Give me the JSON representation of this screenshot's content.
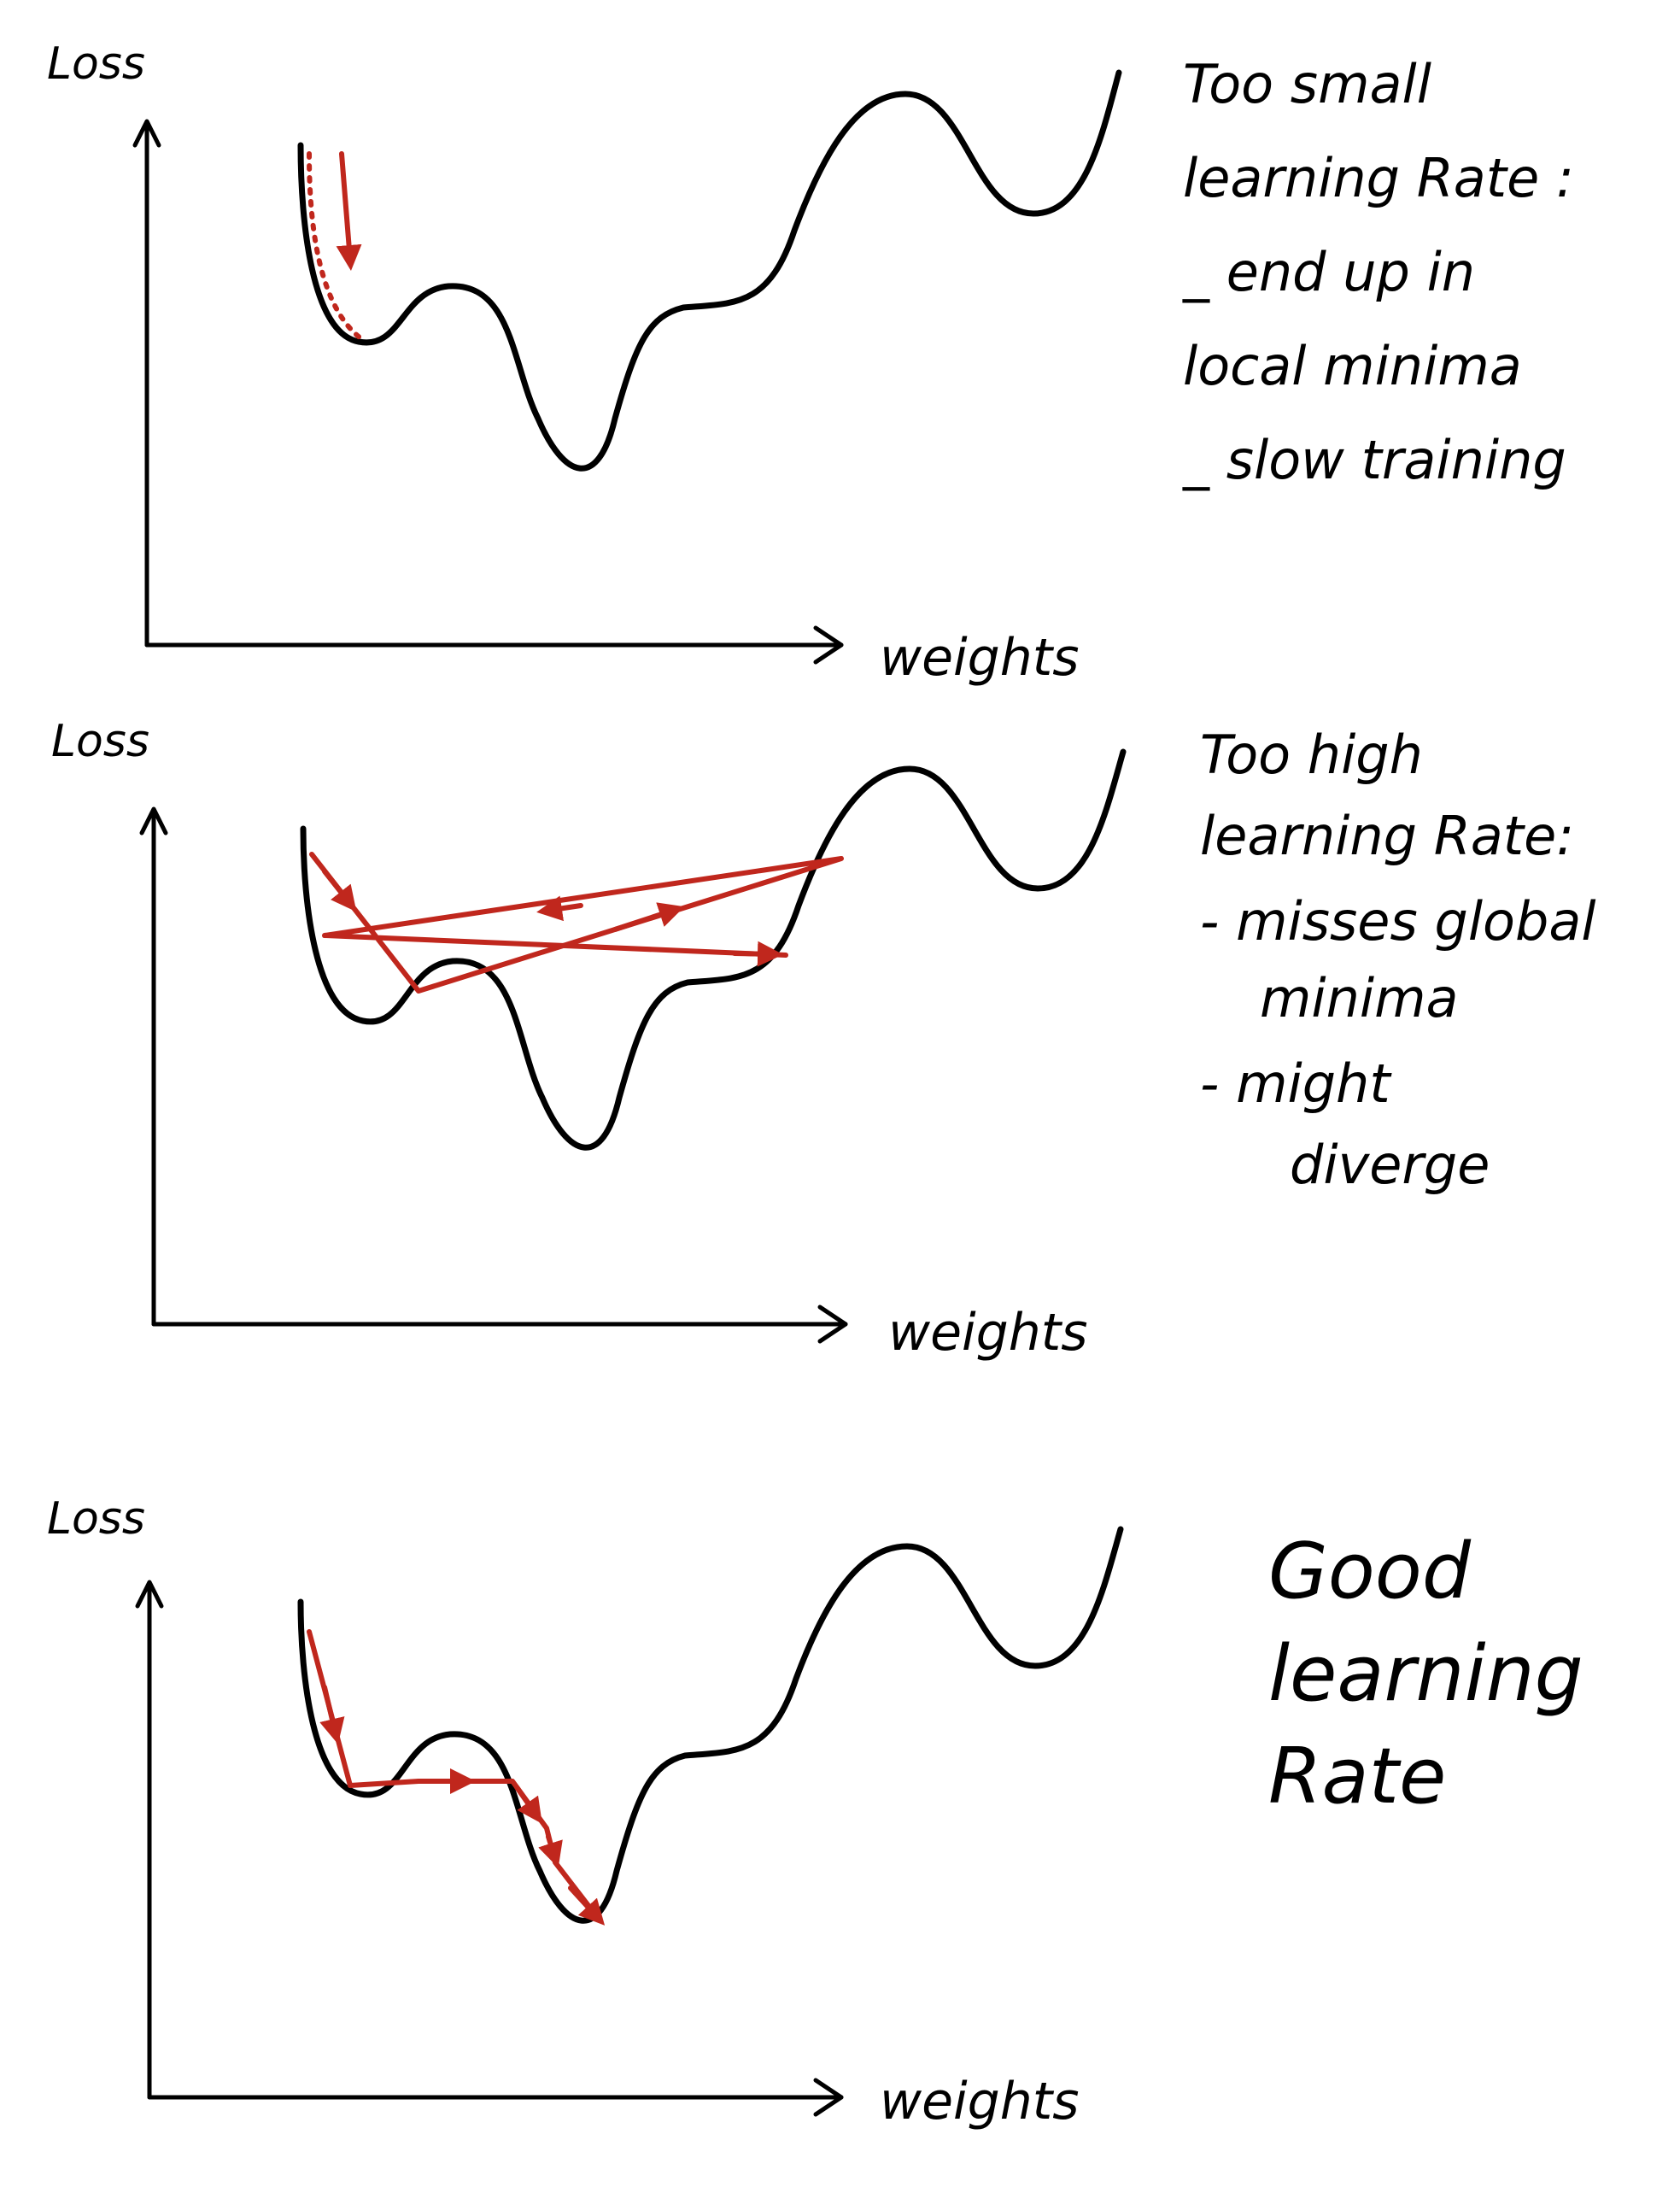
{
  "panels": [
    {
      "id": "too-small",
      "y_axis_label": "Loss",
      "x_axis_label": "weights",
      "note_lines": [
        "Too small",
        "learning Rate :",
        "_ end up in",
        "local minima",
        "_ slow training"
      ]
    },
    {
      "id": "too-high",
      "y_axis_label": "Loss",
      "x_axis_label": "weights",
      "note_lines": [
        "Too high",
        "learning Rate:",
        "- misses global",
        "minima",
        "- might",
        "diverge"
      ]
    },
    {
      "id": "good",
      "y_axis_label": "Loss",
      "x_axis_label": "weights",
      "note_lines": [
        "Good",
        "learning",
        "Rate"
      ]
    }
  ],
  "colors": {
    "ink": "#000000",
    "arrow": "#c0271d",
    "background": "#ffffff"
  }
}
